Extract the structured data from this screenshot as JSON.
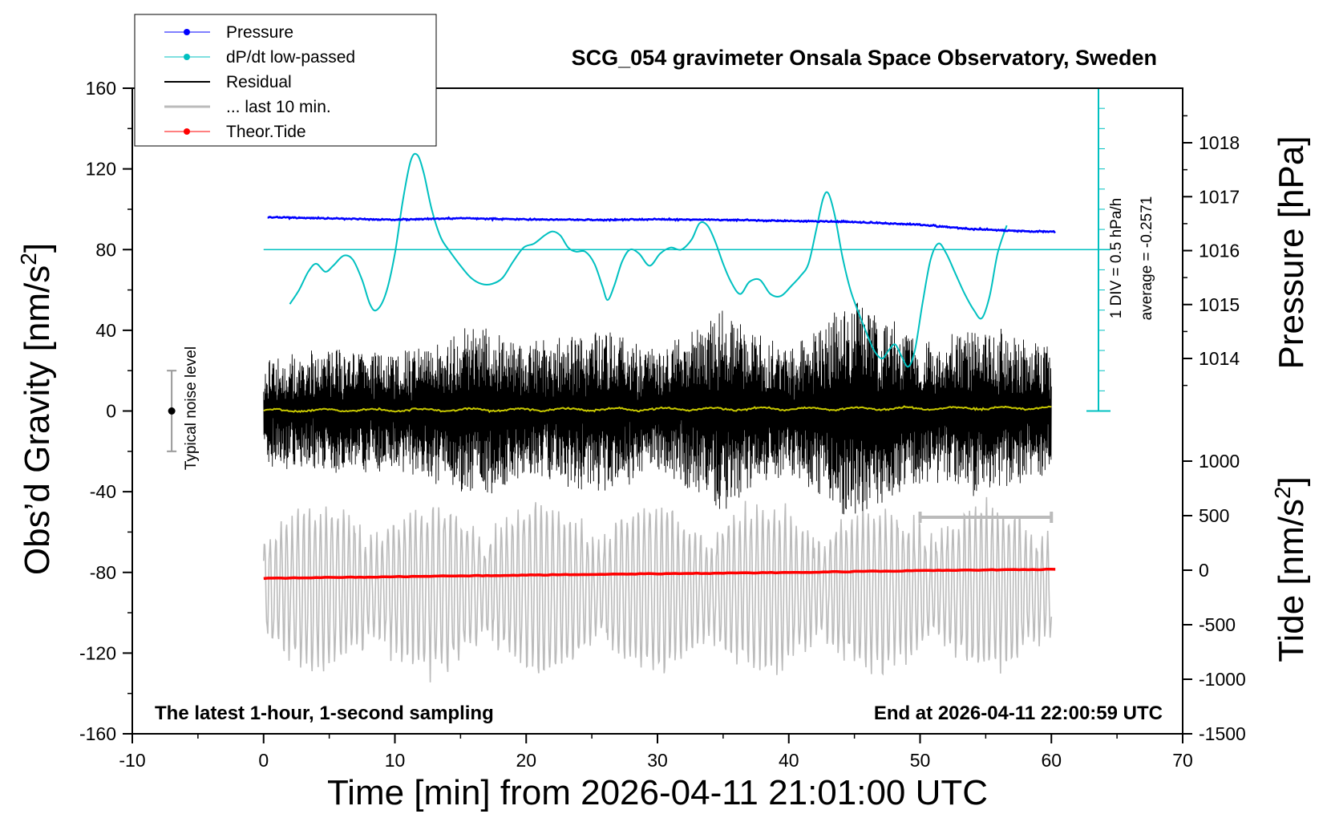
{
  "chart_data": {
    "type": "line",
    "title": "SCG_054 gravimeter Onsala Space Observatory, Sweden",
    "xlabel": "Time [min] from 2026-04-11 21:01:00 UTC",
    "ylabel_left": "Obs'd Gravity [nm/s2]",
    "ylabel_right_top": "Pressure [hPa]",
    "ylabel_right_bottom": "Tide [nm/s2]",
    "xlim": [
      -10,
      70
    ],
    "ylim_left": [
      -160,
      160
    ],
    "x_ticks": [
      "-10",
      "0",
      "10",
      "20",
      "30",
      "40",
      "50",
      "60",
      "70"
    ],
    "y_ticks_left": [
      "160",
      "120",
      "80",
      "40",
      "0",
      "-40",
      "-80",
      "-120",
      "-160"
    ],
    "pressure_axis": {
      "ticks": [
        "1018",
        "1017",
        "1016",
        "1015",
        "1014"
      ],
      "range": [
        1013,
        1019
      ]
    },
    "tide_axis": {
      "ticks": [
        "1000",
        "500",
        "0",
        "-500",
        "-1000",
        "-1500"
      ],
      "range": [
        -1500,
        1000
      ]
    },
    "legend": {
      "placement": "top-left",
      "entries": [
        "Pressure",
        "dP/dt low-passed",
        "Residual",
        "... last 10 min.",
        "Theor.Tide"
      ]
    },
    "colors": {
      "pressure": "#0000ff",
      "dpdt": "#00c0c0",
      "residual": "#000000",
      "last10": "#bbbbbb",
      "tide": "#ff0000",
      "residual_mean": "#c8c800"
    },
    "annotations": {
      "noise": "Typical noise level",
      "scale_div": "1 DIV = 0.5 hPa/h",
      "scale_avg": "average = -0.2571",
      "bottom_left": "The latest 1-hour, 1-second sampling",
      "bottom_right": "End at 2026-04-11 22:00:59 UTC"
    },
    "series": [
      {
        "name": "Pressure",
        "unit": "hPa",
        "x": [
          0.3,
          5,
          10,
          15,
          20,
          25,
          30,
          35,
          40,
          45,
          48,
          50,
          52,
          54,
          56,
          58,
          60.3
        ],
        "y": [
          1016.62,
          1016.6,
          1016.57,
          1016.6,
          1016.58,
          1016.57,
          1016.58,
          1016.57,
          1016.55,
          1016.53,
          1016.5,
          1016.48,
          1016.44,
          1016.4,
          1016.38,
          1016.36,
          1016.35
        ]
      },
      {
        "name": "dP/dt low-passed",
        "unit": "nm/s2 (scaled)",
        "x": [
          2,
          2.7,
          3.4,
          4.0,
          4.7,
          5.3,
          6.1,
          6.8,
          7.5,
          8.1,
          8.6,
          9.3,
          10.0,
          10.6,
          11.2,
          11.7,
          12.2,
          12.8,
          13.5,
          14.2,
          15.0,
          15.8,
          16.6,
          17.4,
          18.2,
          19.0,
          19.8,
          20.6,
          21.4,
          22.0,
          22.6,
          23.2,
          23.8,
          24.5,
          25.2,
          25.8,
          26.2,
          26.7,
          27.3,
          27.9,
          28.6,
          29.4,
          30.2,
          31.0,
          31.8,
          32.6,
          33.2,
          33.8,
          34.4,
          35.0,
          35.6,
          36.3,
          37.0,
          37.8,
          38.6,
          39.4,
          40.2,
          40.9,
          41.5,
          42.1,
          42.6,
          43.0,
          43.5,
          44.1,
          44.7,
          45.3,
          45.9,
          46.5,
          47.1,
          47.6,
          48.1,
          48.6,
          49.1,
          49.6,
          50.2,
          50.8,
          51.4,
          52.0,
          52.7,
          53.4,
          54.1,
          54.7,
          55.3,
          55.9,
          56.6
        ],
        "y": [
          53,
          60,
          69,
          73,
          69,
          72,
          77,
          75,
          65,
          53,
          50,
          58,
          78,
          104,
          124,
          127,
          118,
          100,
          86,
          79,
          72,
          66,
          63,
          63,
          66,
          74,
          81,
          83,
          87,
          89,
          87,
          81,
          79,
          79,
          73,
          62,
          55,
          62,
          74,
          80,
          78,
          72,
          78,
          81,
          80,
          85,
          93,
          92,
          84,
          73,
          64,
          58,
          64,
          65,
          58,
          57,
          62,
          67,
          73,
          90,
          105,
          108,
          97,
          76,
          60,
          49,
          39,
          30,
          26,
          30,
          33,
          27,
          22,
          30,
          54,
          75,
          83,
          78,
          68,
          58,
          50,
          46,
          57,
          78,
          92
        ]
      },
      {
        "name": "Residual",
        "unit": "nm/s2",
        "x_range": [
          0,
          60
        ],
        "amplitude_envelope": [
          {
            "x": 0,
            "amp": 25
          },
          {
            "x": 5,
            "amp": 30
          },
          {
            "x": 10,
            "amp": 28
          },
          {
            "x": 17,
            "amp": 42
          },
          {
            "x": 20,
            "amp": 32
          },
          {
            "x": 26,
            "amp": 40
          },
          {
            "x": 30,
            "amp": 28
          },
          {
            "x": 35,
            "amp": 50
          },
          {
            "x": 40,
            "amp": 30
          },
          {
            "x": 45,
            "amp": 55
          },
          {
            "x": 50,
            "amp": 35
          },
          {
            "x": 55,
            "amp": 40
          },
          {
            "x": 60,
            "amp": 30
          }
        ]
      },
      {
        "name": "... last 10 min.",
        "unit": "nm/s2 (offset copy of residual)",
        "x_range": [
          0,
          60
        ],
        "baseline": -88,
        "amplitude": 30
      },
      {
        "name": "Theor.Tide",
        "unit": "nm/s2",
        "x": [
          0,
          10,
          20,
          30,
          40,
          50,
          60.3
        ],
        "y": [
          -75,
          -60,
          -45,
          -32,
          -22,
          -4,
          8
        ]
      }
    ]
  }
}
